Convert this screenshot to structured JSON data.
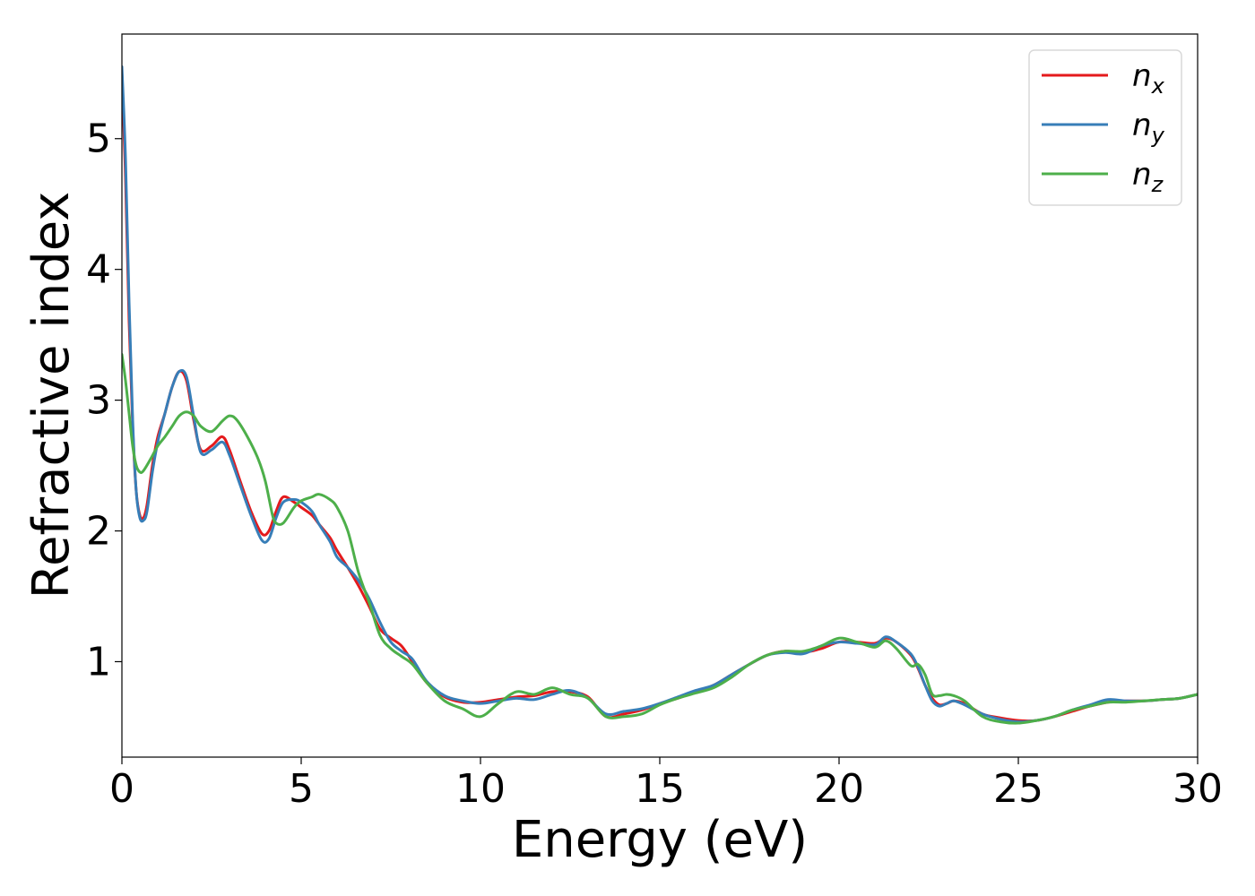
{
  "chart_data": {
    "type": "line",
    "xlabel": "Energy (eV)",
    "ylabel": "Refractive index",
    "xlim": [
      0,
      30
    ],
    "ylim": [
      0.27,
      5.8
    ],
    "xticks": [
      0,
      5,
      10,
      15,
      20,
      25,
      30
    ],
    "xtick_labels": [
      "0",
      "5",
      "10",
      "15",
      "20",
      "25",
      "30"
    ],
    "yticks": [
      1,
      2,
      3,
      4,
      5
    ],
    "ytick_labels": [
      "1",
      "2",
      "3",
      "4",
      "5"
    ],
    "grid": false,
    "legend_position": "top-right",
    "series": [
      {
        "name": "n",
        "subscript": "x",
        "color": "#e41a1c",
        "x": [
          0.0,
          0.1,
          0.2,
          0.3,
          0.4,
          0.5,
          0.6,
          0.7,
          0.85,
          1.0,
          1.2,
          1.4,
          1.6,
          1.8,
          2.0,
          2.2,
          2.5,
          2.8,
          3.0,
          3.3,
          3.6,
          3.9,
          4.1,
          4.3,
          4.5,
          4.8,
          5.0,
          5.3,
          5.5,
          5.8,
          6.0,
          6.3,
          6.6,
          6.9,
          7.2,
          7.5,
          7.8,
          8.1,
          8.5,
          9.0,
          9.5,
          10.0,
          10.5,
          11.0,
          11.5,
          12.0,
          12.5,
          13.0,
          13.5,
          14.0,
          14.5,
          15.0,
          15.5,
          16.0,
          16.5,
          17.0,
          17.5,
          18.0,
          18.5,
          19.0,
          19.5,
          20.0,
          20.5,
          21.0,
          21.3,
          21.6,
          22.0,
          22.2,
          22.4,
          22.6,
          22.8,
          23.0,
          23.2,
          23.5,
          24.0,
          24.5,
          25.0,
          25.5,
          26.0,
          26.5,
          27.0,
          27.5,
          28.0,
          28.5,
          29.0,
          29.5,
          30.0
        ],
        "y": [
          5.5,
          4.7,
          3.6,
          2.8,
          2.3,
          2.12,
          2.1,
          2.2,
          2.5,
          2.72,
          2.9,
          3.1,
          3.22,
          3.15,
          2.85,
          2.62,
          2.65,
          2.72,
          2.62,
          2.38,
          2.15,
          1.98,
          2.0,
          2.15,
          2.26,
          2.22,
          2.18,
          2.12,
          2.05,
          1.95,
          1.85,
          1.72,
          1.58,
          1.42,
          1.25,
          1.18,
          1.12,
          1.0,
          0.84,
          0.73,
          0.69,
          0.69,
          0.71,
          0.73,
          0.74,
          0.77,
          0.77,
          0.73,
          0.58,
          0.6,
          0.63,
          0.68,
          0.72,
          0.77,
          0.82,
          0.9,
          0.98,
          1.05,
          1.08,
          1.07,
          1.1,
          1.15,
          1.15,
          1.14,
          1.18,
          1.15,
          1.05,
          0.95,
          0.82,
          0.72,
          0.67,
          0.68,
          0.7,
          0.68,
          0.6,
          0.57,
          0.55,
          0.55,
          0.58,
          0.62,
          0.66,
          0.69,
          0.7,
          0.7,
          0.71,
          0.72,
          0.75
        ]
      },
      {
        "name": "n",
        "subscript": "y",
        "color": "#377eb8",
        "x": [
          0.0,
          0.1,
          0.2,
          0.3,
          0.4,
          0.5,
          0.6,
          0.7,
          0.85,
          1.0,
          1.2,
          1.4,
          1.6,
          1.8,
          2.0,
          2.2,
          2.5,
          2.8,
          3.0,
          3.3,
          3.6,
          3.9,
          4.1,
          4.3,
          4.5,
          4.8,
          5.0,
          5.3,
          5.5,
          5.8,
          6.0,
          6.3,
          6.6,
          6.9,
          7.2,
          7.5,
          7.8,
          8.1,
          8.5,
          9.0,
          9.5,
          10.0,
          10.5,
          11.0,
          11.5,
          12.0,
          12.5,
          13.0,
          13.5,
          14.0,
          14.5,
          15.0,
          15.5,
          16.0,
          16.5,
          17.0,
          17.5,
          18.0,
          18.5,
          19.0,
          19.5,
          20.0,
          20.5,
          21.0,
          21.3,
          21.6,
          22.0,
          22.2,
          22.4,
          22.6,
          22.8,
          23.0,
          23.2,
          23.5,
          24.0,
          24.5,
          25.0,
          25.5,
          26.0,
          26.5,
          27.0,
          27.5,
          28.0,
          28.5,
          29.0,
          29.5,
          30.0
        ],
        "y": [
          5.55,
          4.85,
          3.75,
          2.85,
          2.3,
          2.1,
          2.08,
          2.15,
          2.45,
          2.68,
          2.9,
          3.1,
          3.22,
          3.18,
          2.88,
          2.6,
          2.62,
          2.68,
          2.58,
          2.35,
          2.12,
          1.93,
          1.94,
          2.1,
          2.22,
          2.24,
          2.22,
          2.15,
          2.05,
          1.92,
          1.8,
          1.72,
          1.62,
          1.48,
          1.3,
          1.15,
          1.08,
          1.02,
          0.85,
          0.74,
          0.7,
          0.68,
          0.7,
          0.72,
          0.71,
          0.75,
          0.78,
          0.72,
          0.6,
          0.62,
          0.64,
          0.68,
          0.73,
          0.78,
          0.82,
          0.9,
          0.98,
          1.05,
          1.07,
          1.06,
          1.12,
          1.15,
          1.14,
          1.13,
          1.19,
          1.15,
          1.06,
          0.96,
          0.82,
          0.7,
          0.66,
          0.68,
          0.7,
          0.67,
          0.6,
          0.56,
          0.54,
          0.55,
          0.58,
          0.63,
          0.67,
          0.71,
          0.7,
          0.7,
          0.71,
          0.72,
          0.75
        ]
      },
      {
        "name": "n",
        "subscript": "z",
        "color": "#4daf4a",
        "x": [
          0.0,
          0.1,
          0.2,
          0.3,
          0.4,
          0.5,
          0.6,
          0.8,
          1.0,
          1.2,
          1.4,
          1.6,
          1.8,
          2.0,
          2.2,
          2.5,
          2.8,
          3.0,
          3.2,
          3.5,
          3.8,
          4.0,
          4.2,
          4.3,
          4.5,
          4.8,
          5.0,
          5.3,
          5.5,
          5.8,
          6.0,
          6.3,
          6.6,
          6.9,
          7.2,
          7.5,
          7.8,
          8.1,
          8.5,
          9.0,
          9.5,
          10.0,
          10.5,
          11.0,
          11.5,
          12.0,
          12.5,
          13.0,
          13.5,
          14.0,
          14.5,
          15.0,
          15.5,
          16.0,
          16.5,
          17.0,
          17.5,
          18.0,
          18.5,
          19.0,
          19.5,
          20.0,
          20.5,
          21.0,
          21.3,
          21.6,
          22.0,
          22.2,
          22.4,
          22.6,
          22.8,
          23.0,
          23.2,
          23.5,
          24.0,
          24.5,
          25.0,
          25.5,
          26.0,
          26.5,
          27.0,
          27.5,
          28.0,
          28.5,
          29.0,
          29.5,
          30.0
        ],
        "y": [
          3.35,
          3.15,
          2.9,
          2.65,
          2.5,
          2.45,
          2.46,
          2.55,
          2.65,
          2.72,
          2.8,
          2.88,
          2.91,
          2.88,
          2.8,
          2.76,
          2.84,
          2.88,
          2.85,
          2.72,
          2.55,
          2.38,
          2.12,
          2.06,
          2.06,
          2.18,
          2.23,
          2.26,
          2.28,
          2.24,
          2.18,
          2.0,
          1.68,
          1.45,
          1.2,
          1.1,
          1.04,
          0.98,
          0.84,
          0.7,
          0.64,
          0.58,
          0.68,
          0.77,
          0.75,
          0.8,
          0.75,
          0.72,
          0.58,
          0.58,
          0.6,
          0.67,
          0.72,
          0.76,
          0.8,
          0.88,
          0.98,
          1.05,
          1.08,
          1.08,
          1.12,
          1.18,
          1.15,
          1.11,
          1.16,
          1.1,
          0.97,
          0.98,
          0.9,
          0.75,
          0.74,
          0.75,
          0.74,
          0.7,
          0.58,
          0.54,
          0.53,
          0.55,
          0.58,
          0.63,
          0.66,
          0.69,
          0.69,
          0.7,
          0.71,
          0.72,
          0.75
        ]
      }
    ]
  }
}
